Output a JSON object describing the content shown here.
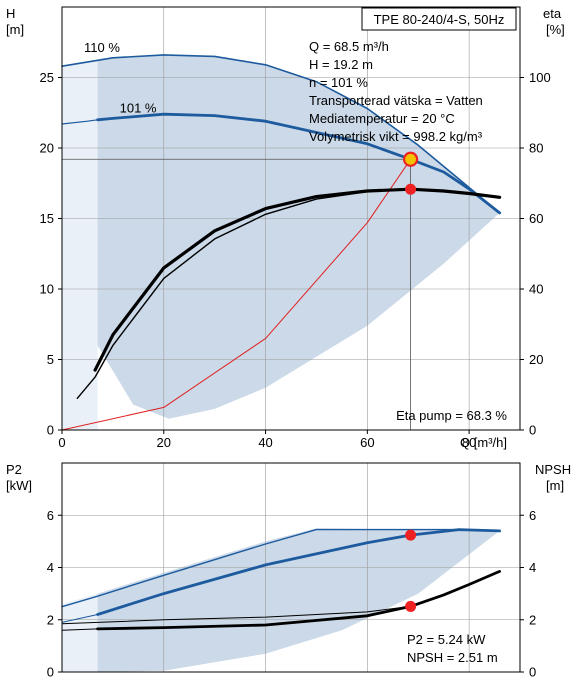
{
  "colors": {
    "envelope": "#cbd9e8",
    "envelope_light": "#e9f0f7",
    "curve_blue": "#1d5b9e",
    "eta_black": "#000000",
    "system_curve": "#e02020",
    "duty_point": "#ee2222",
    "duty_point_ring": "#f2c200",
    "grid": "#9a9a9a"
  },
  "chart_data": [
    {
      "type": "line",
      "title": "TPE 80-240/4-S, 50Hz",
      "xlabel": "Q [m³/h]",
      "ylabel": "H\n[m]",
      "y2label": "eta\n[%]",
      "xlim": [
        0,
        90
      ],
      "ylim": [
        0,
        30
      ],
      "y2lim": [
        0,
        120
      ],
      "xticks": [
        0,
        20,
        40,
        60,
        80
      ],
      "yticks": [
        0,
        5,
        10,
        15,
        20,
        25
      ],
      "y2ticks": [
        0,
        20,
        40,
        60,
        80,
        100
      ],
      "grid": true,
      "info_lines": [
        "Q = 68.5 m³/h",
        "H = 19.2 m",
        "n = 101 %",
        "Transporterad vätska = Vatten",
        "Mediatemperatur = 20 °C",
        "Volymetrisk vikt = 998.2 kg/m³"
      ],
      "eta_pump_label": "Eta pump = 68.3 %",
      "series": [
        {
          "name": "110 %",
          "axis": "H",
          "color": "#1d5b9e",
          "width": 1.6,
          "x": [
            0,
            10,
            20,
            30,
            40,
            50,
            60,
            70,
            80,
            86
          ],
          "y": [
            25.8,
            26.4,
            26.6,
            26.5,
            25.9,
            24.7,
            22.8,
            20.2,
            17.2,
            15.4
          ]
        },
        {
          "name": "101 %",
          "axis": "H",
          "color": "#1d5b9e",
          "width": 2.8,
          "x": [
            7,
            10,
            20,
            30,
            40,
            50,
            60,
            68.5,
            75,
            80,
            86
          ],
          "y": [
            22.0,
            22.1,
            22.4,
            22.3,
            21.9,
            21.1,
            20.3,
            19.2,
            18.3,
            17.1,
            15.4
          ]
        },
        {
          "name": "",
          "axis": "H",
          "color": "#1d5b9e",
          "width": 1.2,
          "x": [
            0,
            5,
            7
          ],
          "y": [
            21.7,
            21.9,
            22.0
          ]
        },
        {
          "name": "",
          "axis": "H",
          "color": "#e02020",
          "width": 1.0,
          "x": [
            0,
            20,
            40,
            60,
            68.5
          ],
          "y": [
            0,
            1.6,
            6.5,
            14.7,
            19.2
          ]
        },
        {
          "name": "",
          "axis": "eta",
          "color": "#000000",
          "width": 3.2,
          "x": [
            6.5,
            10,
            20,
            30,
            40,
            50,
            60,
            68.5,
            75,
            80,
            86
          ],
          "y": [
            17,
            27,
            46,
            56.5,
            62.8,
            66.2,
            67.8,
            68.3,
            67.8,
            67.1,
            66.0
          ]
        },
        {
          "name": "",
          "axis": "eta",
          "color": "#000000",
          "width": 1.4,
          "x": [
            3,
            6.5,
            10,
            20,
            30,
            40,
            50,
            60,
            68.5
          ],
          "y": [
            9,
            15,
            24,
            43,
            54.2,
            61.2,
            65.5,
            67.6,
            68.3
          ]
        }
      ],
      "envelope": {
        "x": [
          7,
          10,
          20,
          30,
          40,
          50,
          60,
          70,
          80,
          86,
          75,
          60,
          40,
          30,
          21,
          14,
          7
        ],
        "y": [
          26.2,
          26.4,
          26.6,
          26.5,
          25.9,
          24.7,
          22.8,
          20.2,
          17.2,
          15.4,
          11.8,
          7.4,
          3.0,
          1.5,
          0.8,
          1.8,
          6.0
        ]
      },
      "envelope_light": {
        "x": [
          0,
          7,
          7,
          0
        ],
        "y": [
          25.8,
          26.2,
          0,
          0
        ]
      },
      "duty_point": {
        "x": 68.5,
        "y": 19.2
      },
      "eta_point": {
        "x": 68.5,
        "y": 68.3
      }
    },
    {
      "type": "line",
      "title": "",
      "xlabel": "",
      "ylabel": "P2\n[kW]",
      "y2label": "NPSH\n[m]",
      "xlim": [
        0,
        90
      ],
      "ylim": [
        0,
        8
      ],
      "y2lim": [
        0,
        8
      ],
      "yticks": [
        0,
        2,
        4,
        6
      ],
      "y2ticks": [
        0,
        2,
        4,
        6
      ],
      "grid": true,
      "info_lines": [
        "P2 = 5.24 kW",
        "NPSH = 2.51 m"
      ],
      "series": [
        {
          "name": "",
          "axis": "P2",
          "color": "#1d5b9e",
          "width": 1.4,
          "x": [
            0,
            7,
            20,
            40,
            50,
            60,
            70,
            80,
            86
          ],
          "y": [
            2.5,
            2.9,
            3.7,
            4.9,
            5.45,
            5.45,
            5.45,
            5.45,
            5.4
          ]
        },
        {
          "name": "",
          "axis": "P2",
          "color": "#1d5b9e",
          "width": 2.8,
          "x": [
            7,
            20,
            40,
            60,
            68.5,
            78,
            86
          ],
          "y": [
            2.2,
            3.0,
            4.1,
            4.95,
            5.24,
            5.45,
            5.4
          ]
        },
        {
          "name": "",
          "axis": "P2",
          "color": "#1d5b9e",
          "width": 1.0,
          "x": [
            0,
            7
          ],
          "y": [
            1.9,
            2.2
          ]
        },
        {
          "name": "",
          "axis": "NPSH",
          "color": "#000000",
          "width": 2.8,
          "x": [
            7,
            20,
            40,
            60,
            68.5,
            75,
            80,
            86
          ],
          "y": [
            1.65,
            1.7,
            1.8,
            2.15,
            2.51,
            2.95,
            3.35,
            3.85
          ]
        },
        {
          "name": "",
          "axis": "NPSH",
          "color": "#000000",
          "width": 1.0,
          "x": [
            0,
            7,
            20,
            40,
            60,
            68.5
          ],
          "y": [
            1.85,
            1.9,
            2.0,
            2.1,
            2.3,
            2.51
          ]
        },
        {
          "name": "",
          "axis": "NPSH",
          "color": "#000000",
          "width": 1.0,
          "x": [
            0,
            7
          ],
          "y": [
            1.6,
            1.65
          ]
        }
      ],
      "envelope": {
        "x": [
          7,
          20,
          40,
          50,
          86,
          86,
          70,
          55,
          40,
          20,
          7
        ],
        "y": [
          3.0,
          3.8,
          5.0,
          5.5,
          5.4,
          5.4,
          3.0,
          1.6,
          0.7,
          0.05,
          0
        ],
        "note": ""
      },
      "envelope_light": {
        "x": [
          0,
          7,
          7,
          0
        ],
        "y": [
          2.6,
          3.0,
          0,
          0
        ]
      },
      "duty_points": [
        {
          "x": 68.5,
          "y": 5.24
        },
        {
          "x": 68.5,
          "y": 2.51
        }
      ]
    }
  ]
}
